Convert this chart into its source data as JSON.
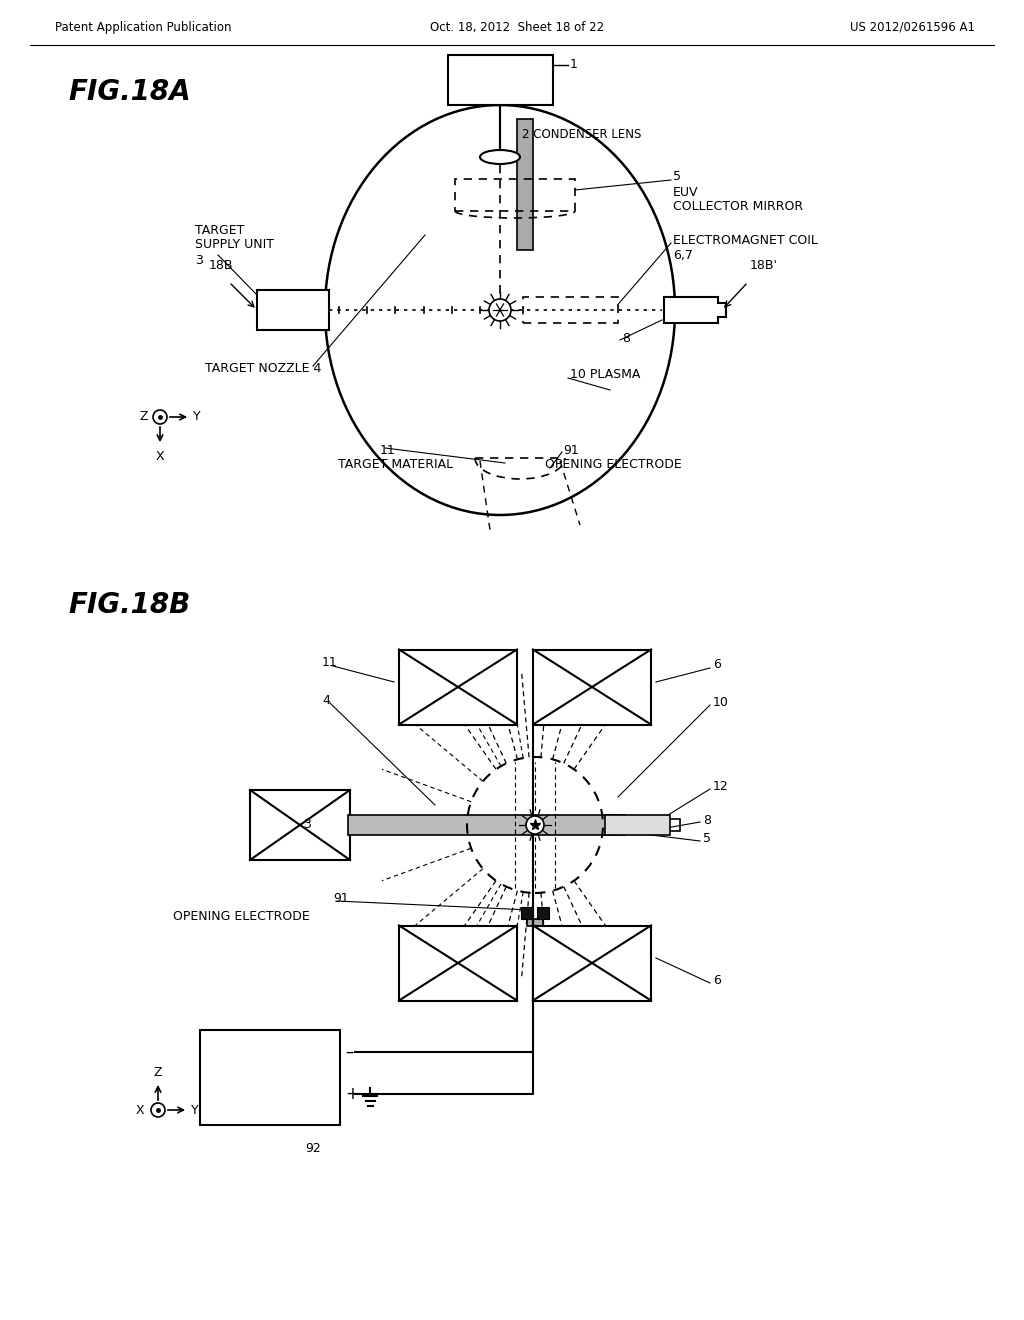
{
  "header_left": "Patent Application Publication",
  "header_mid": "Oct. 18, 2012  Sheet 18 of 22",
  "header_right": "US 2012/0261596 A1",
  "fig_a_label": "FIG.18A",
  "fig_b_label": "FIG.18B",
  "bg_color": "#ffffff",
  "line_color": "#000000"
}
